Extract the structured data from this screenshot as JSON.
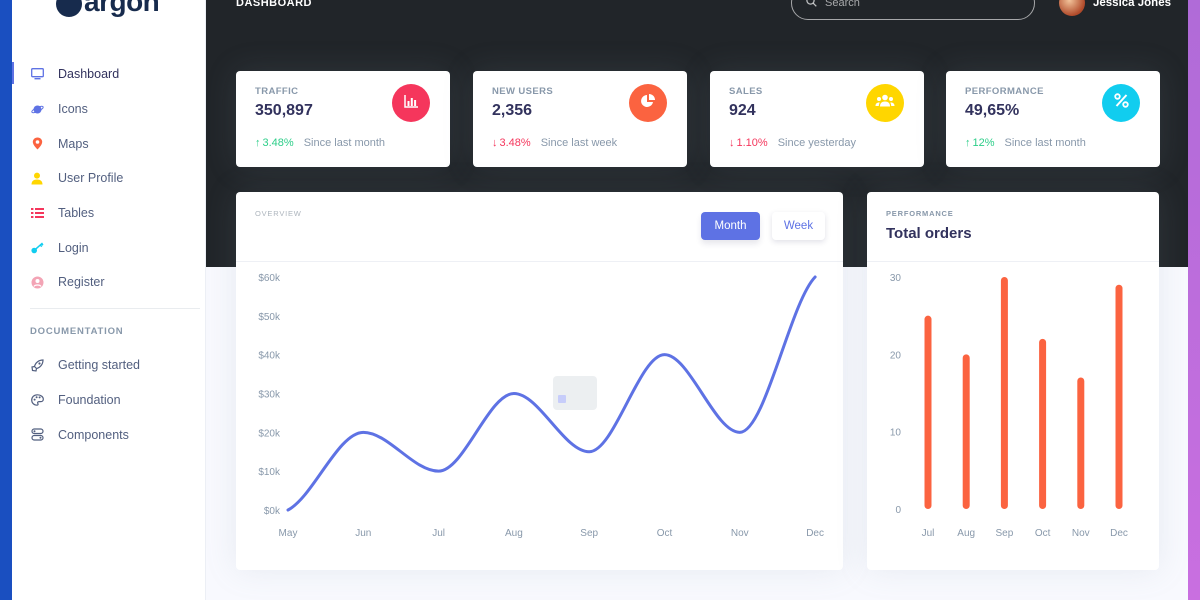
{
  "app": {
    "logo_text": "argon",
    "page_title": "DASHBOARD"
  },
  "search": {
    "placeholder": "Search"
  },
  "user": {
    "name": "Jessica Jones"
  },
  "sidebar": {
    "items": [
      {
        "label": "Dashboard",
        "icon": "tv-icon",
        "color": "#5e72e4",
        "active": true
      },
      {
        "label": "Icons",
        "icon": "planet-icon",
        "color": "#5e72e4"
      },
      {
        "label": "Maps",
        "icon": "pin-icon",
        "color": "#fb6340"
      },
      {
        "label": "User Profile",
        "icon": "single-user-icon",
        "color": "#ffd600"
      },
      {
        "label": "Tables",
        "icon": "bullet-list-icon",
        "color": "#f5365c"
      },
      {
        "label": "Login",
        "icon": "key-icon",
        "color": "#11cdef"
      },
      {
        "label": "Register",
        "icon": "circle-user-icon",
        "color": "#f3a4b5"
      }
    ],
    "doc_heading": "DOCUMENTATION",
    "doc_items": [
      {
        "label": "Getting started",
        "icon": "spaceship-icon"
      },
      {
        "label": "Foundation",
        "icon": "palette-icon"
      },
      {
        "label": "Components",
        "icon": "ui-elements-icon"
      }
    ]
  },
  "stats": [
    {
      "label": "TRAFFIC",
      "value": "350,897",
      "icon": "chart-bar-icon",
      "color": "#f5365c",
      "direction": "up",
      "pct": "3.48%",
      "since": "Since last month"
    },
    {
      "label": "NEW USERS",
      "value": "2,356",
      "icon": "chart-pie-icon",
      "color": "#fb6340",
      "direction": "down",
      "pct": "3.48%",
      "since": "Since last week"
    },
    {
      "label": "SALES",
      "value": "924",
      "icon": "users-icon",
      "color": "#ffd600",
      "direction": "down",
      "pct": "1.10%",
      "since": "Since yesterday"
    },
    {
      "label": "PERFORMANCE",
      "value": "49,65%",
      "icon": "percent-icon",
      "color": "#11cdef",
      "direction": "up",
      "pct": "12%",
      "since": "Since last month"
    }
  ],
  "overview": {
    "label": "OVERVIEW",
    "month_label": "Month",
    "week_label": "Week"
  },
  "performance": {
    "label": "PERFORMANCE",
    "title": "Total orders"
  },
  "chart_data": [
    {
      "type": "line",
      "title": "",
      "categories": [
        "May",
        "Jun",
        "Jul",
        "Aug",
        "Sep",
        "Oct",
        "Nov",
        "Dec"
      ],
      "values": [
        0,
        20,
        10,
        30,
        15,
        40,
        20,
        60
      ],
      "ytick_labels": [
        "$0k",
        "$10k",
        "$20k",
        "$30k",
        "$40k",
        "$50k",
        "$60k"
      ],
      "ylim": [
        0,
        60
      ],
      "color": "#5e72e4",
      "grid": false
    },
    {
      "type": "bar",
      "title": "Total orders",
      "categories": [
        "Jul",
        "Aug",
        "Sep",
        "Oct",
        "Nov",
        "Dec"
      ],
      "values": [
        25,
        20,
        30,
        22,
        17,
        29
      ],
      "ytick_labels": [
        "0",
        "10",
        "20",
        "30"
      ],
      "ylim": [
        0,
        30
      ],
      "color": "#fb6340",
      "grid": false
    }
  ]
}
